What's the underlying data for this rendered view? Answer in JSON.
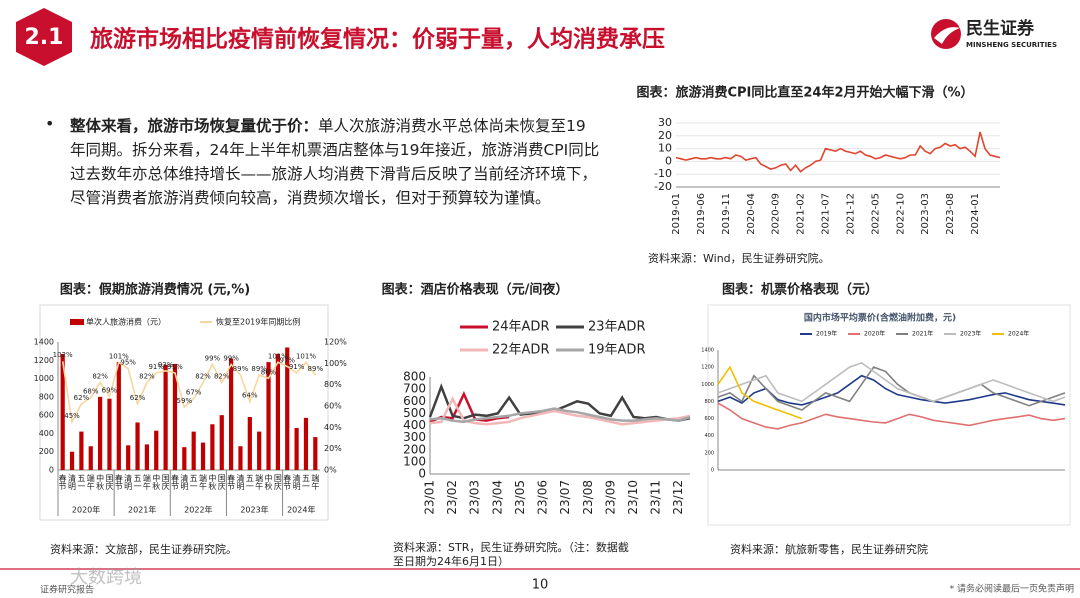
{
  "header": {
    "number": "2.1",
    "title": "旅游市场相比疫情前恢复情况：价弱于量，人均消费承压",
    "logo": "民生证券",
    "logo_en": "MINSHENG SECURITIES"
  },
  "bullet": {
    "bold": "整体来看，旅游市场恢复量优于价：",
    "text": "单人次旅游消费水平总体尚未恢复至19年同期。拆分来看，24年上半年机票酒店整体与19年接近，旅游消费CPI同比过去数年亦总体维持增长——旅游人均消费下滑背后反映了当前经济环境下，尽管消费者旅游消费倾向较高，消费频次增长，但对于预算较为谨慎。"
  },
  "footer": {
    "page": "10",
    "disclaimer": "* 请务必阅读最后一页免责声明",
    "left": "证券研究报告",
    "watermark": "大数跨境"
  },
  "chart_data": [
    {
      "type": "line",
      "title": "图表：旅游消费CPI同比直至24年2月开始大幅下滑（%）",
      "source": "资料来源：Wind，民生证券研究院。",
      "categories": [
        "2019-01",
        null,
        null,
        null,
        null,
        "2019-06",
        null,
        null,
        null,
        null,
        "2019-11",
        null,
        null,
        null,
        null,
        "2020-04",
        null,
        null,
        null,
        null,
        "2020-09",
        null,
        null,
        null,
        null,
        "2021-02",
        null,
        null,
        null,
        null,
        "2021-07",
        null,
        null,
        null,
        null,
        "2021-12",
        null,
        null,
        null,
        null,
        "2022-05",
        null,
        null,
        null,
        null,
        "2022-10",
        null,
        null,
        null,
        null,
        "2023-03",
        null,
        null,
        null,
        null,
        "2023-08",
        null,
        null,
        null,
        null,
        "2024-01",
        null,
        null,
        null,
        null,
        null
      ],
      "series": [
        {
          "color": "#e0452f",
          "values": [
            3,
            2,
            1,
            2,
            3,
            2,
            2,
            3,
            2,
            2,
            3,
            2,
            5,
            4,
            1,
            2,
            3,
            -2,
            -4,
            -6,
            -5,
            -3,
            -2,
            -7,
            -3,
            -8,
            -5,
            -3,
            0,
            1,
            10,
            9,
            8,
            10,
            8,
            7,
            6,
            8,
            5,
            4,
            2,
            3,
            5,
            4,
            3,
            2,
            3,
            5,
            5,
            12,
            8,
            6,
            10,
            11,
            14,
            12,
            13,
            10,
            11,
            8,
            4,
            23,
            10,
            5,
            4,
            3
          ]
        }
      ],
      "ylim": [
        -20,
        30
      ],
      "yticks": [
        -20,
        -10,
        0,
        10,
        20,
        30
      ],
      "grid": true
    },
    {
      "type": "bar",
      "title": "图表：假期旅游消费情况 (元,%)",
      "source": "资料来源：文旅部，民生证券研究院。",
      "categories": [
        "春节",
        "清明",
        "五一",
        "端午",
        "中秋",
        "国庆",
        "春节",
        "清明",
        "五一",
        "端午",
        "中秋",
        "国庆",
        "春节",
        "清明",
        "五一",
        "端午",
        "中秋",
        "国庆",
        "春节",
        "清明",
        "五一",
        "端午",
        "中秋",
        "国庆",
        "春节",
        "清明",
        "五一",
        "端午"
      ],
      "groups": [
        "2020年",
        "2021年",
        "2022年",
        "2023年",
        "2024年"
      ],
      "series": [
        {
          "name": "单次人旅游消费（元）",
          "color": "#c00000",
          "values": [
            1270,
            200,
            420,
            260,
            800,
            780,
            1180,
            270,
            520,
            280,
            430,
            1150,
            1160,
            250,
            420,
            300,
            500,
            600,
            1220,
            260,
            580,
            420,
            1180,
            1270,
            1340,
            460,
            570,
            360
          ]
        },
        {
          "name": "恢复至2019年同期比例",
          "color": "#f6d7a0",
          "type": "line",
          "axis": "y2",
          "values": [
            102,
            45,
            62,
            68,
            82,
            69,
            101,
            95,
            62,
            82,
            91,
            93,
            91,
            59,
            67,
            82,
            99,
            82,
            99,
            89,
            64,
            89,
            86,
            101,
            97,
            91,
            101,
            89
          ],
          "value_labels": [
            "102%",
            "45%",
            "62%",
            "68%",
            "82%",
            "69%",
            "101%",
            "95%",
            "62%",
            "82%",
            "91%",
            "93%",
            "91%",
            "59%",
            "67%",
            "82%",
            "99%",
            "82%",
            "99%",
            "89%",
            "64%",
            "89%",
            "86%",
            "101%",
            "97%",
            "91%",
            "101%",
            "89%"
          ]
        }
      ],
      "ylim": [
        0,
        1400
      ],
      "yticks": [
        0,
        200,
        400,
        600,
        800,
        1000,
        1200,
        1400
      ],
      "y2lim": [
        0,
        120
      ],
      "y2ticks": [
        {
          "value": 0,
          "label": "0%"
        },
        {
          "value": 20,
          "label": "20%"
        },
        {
          "value": 40,
          "label": "40%"
        },
        {
          "value": 60,
          "label": "60%"
        },
        {
          "value": 80,
          "label": "80%"
        },
        {
          "value": 100,
          "label": "100%"
        },
        {
          "value": 120,
          "label": "120%"
        }
      ]
    },
    {
      "type": "line",
      "title": "图表：酒店价格表现（元/间夜）",
      "source": "资料来源：STR，民生证券研究院。（注：数据截至日期为24年6月1日）",
      "categories": [
        "23/01",
        null,
        "23/02",
        null,
        "23/03",
        null,
        "23/04",
        null,
        "23/05",
        null,
        "23/06",
        null,
        "23/07",
        null,
        "23/08",
        null,
        "23/09",
        null,
        "23/10",
        null,
        "23/11",
        null,
        "23/12",
        null
      ],
      "series": [
        {
          "name": "24年ADR",
          "color": "#c8102e",
          "values": [
            430,
            470,
            460,
            660,
            450,
            440,
            460,
            470,
            null,
            null,
            null,
            null,
            null,
            null,
            null,
            null,
            null,
            null,
            null,
            null,
            null,
            null,
            null,
            null
          ]
        },
        {
          "name": "23年ADR",
          "color": "#404040",
          "values": [
            470,
            720,
            480,
            460,
            490,
            480,
            500,
            630,
            490,
            500,
            510,
            520,
            560,
            600,
            580,
            500,
            480,
            630,
            470,
            460,
            470,
            450,
            440,
            460
          ]
        },
        {
          "name": "22年ADR",
          "color": "#f2b8b8",
          "values": [
            420,
            430,
            620,
            440,
            420,
            410,
            420,
            430,
            460,
            480,
            500,
            520,
            500,
            480,
            470,
            450,
            430,
            410,
            420,
            430,
            440,
            450,
            460,
            480
          ]
        },
        {
          "name": "19年ADR",
          "color": "#a6a6a6",
          "values": [
            450,
            460,
            440,
            430,
            450,
            460,
            470,
            480,
            500,
            510,
            520,
            540,
            520,
            510,
            490,
            470,
            450,
            440,
            440,
            450,
            460,
            450,
            440,
            470
          ]
        }
      ],
      "ylim": [
        0,
        800
      ],
      "yticks": [
        0,
        100,
        200,
        300,
        400,
        500,
        600,
        700,
        800
      ]
    },
    {
      "type": "line",
      "title": "图表：机票价格表现（元）",
      "subtitle": "国内市场平均票价(含燃油附加费，元)",
      "source": "资料来源：航旅新零售，民生证券研究院",
      "series": [
        {
          "name": "2019年",
          "color": "#1f3a8a",
          "values": [
            800,
            850,
            780,
            900,
            950,
            820,
            780,
            760,
            800,
            850,
            900,
            1000,
            1100,
            1050,
            950,
            880,
            850,
            820,
            800,
            780,
            800,
            820,
            850,
            880,
            900,
            860,
            820,
            800,
            780,
            760
          ]
        },
        {
          "name": "2020年",
          "color": "#e07070",
          "values": [
            780,
            700,
            600,
            550,
            500,
            480,
            520,
            550,
            600,
            650,
            620,
            600,
            580,
            560,
            550,
            600,
            650,
            620,
            580,
            560,
            540,
            520,
            550,
            580,
            600,
            620,
            640,
            600,
            580,
            600
          ]
        },
        {
          "name": "2021年",
          "color": "#808080",
          "values": [
            850,
            900,
            800,
            1100,
            950,
            800,
            750,
            700,
            800,
            900,
            850,
            800,
            1000,
            1200,
            1150,
            1000,
            900,
            850,
            800,
            850,
            900,
            950,
            1000,
            900,
            850,
            800,
            750,
            800,
            850,
            900
          ]
        },
        {
          "name": "2023年",
          "color": "#bdbdbd",
          "values": [
            900,
            950,
            1000,
            1050,
            1100,
            900,
            850,
            800,
            900,
            1000,
            1100,
            1200,
            1250,
            1150,
            1050,
            950,
            900,
            850,
            800,
            850,
            900,
            950,
            1000,
            1050,
            1000,
            950,
            900,
            850,
            800,
            850
          ]
        },
        {
          "name": "2024年",
          "color": "#f0c000",
          "values": [
            1000,
            1200,
            900,
            800,
            750,
            700,
            650,
            600,
            null,
            null,
            null,
            null,
            null,
            null,
            null,
            null,
            null,
            null,
            null,
            null,
            null,
            null,
            null,
            null,
            null,
            null,
            null,
            null,
            null,
            null
          ]
        }
      ],
      "ylim": [
        0,
        1400
      ],
      "yticks": [
        0,
        200,
        400,
        600,
        800,
        1000,
        1200,
        1400
      ]
    }
  ]
}
